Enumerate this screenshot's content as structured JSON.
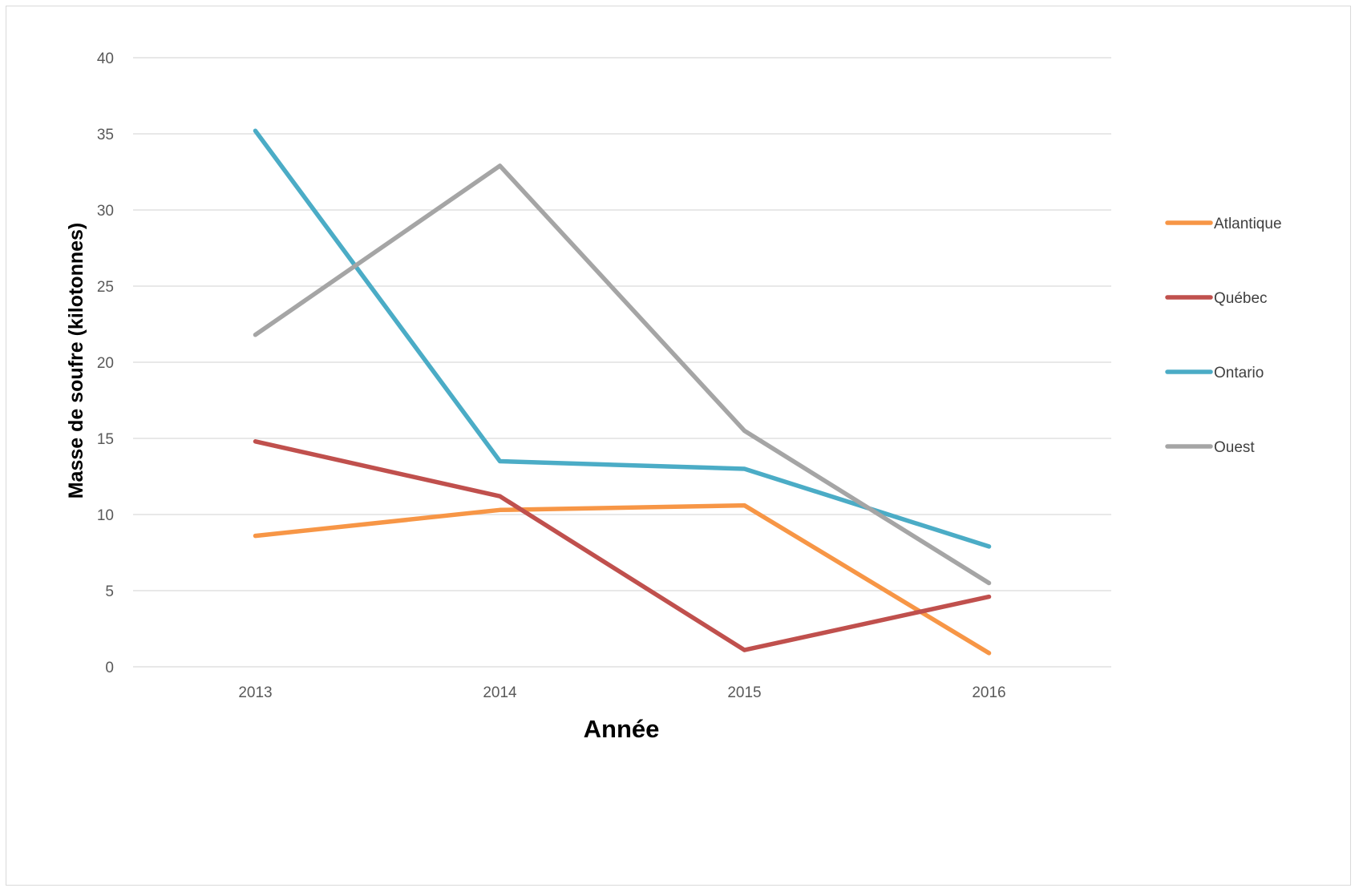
{
  "chart_data": {
    "type": "line",
    "title": "",
    "xlabel": "Année",
    "ylabel": "Masse de soufre (kilotonnes)",
    "categories": [
      "2013",
      "2014",
      "2015",
      "2016"
    ],
    "ylim": [
      0,
      40
    ],
    "yticks": [
      0,
      5,
      10,
      15,
      20,
      25,
      30,
      35,
      40
    ],
    "grid": true,
    "legend_position": "right",
    "series": [
      {
        "name": "Atlantique",
        "color": "#F79646",
        "values": [
          8.6,
          10.3,
          10.6,
          0.9
        ]
      },
      {
        "name": "Québec",
        "color": "#C0504D",
        "values": [
          14.8,
          11.2,
          1.1,
          4.6
        ]
      },
      {
        "name": "Ontario",
        "color": "#4BACC6",
        "values": [
          35.2,
          13.5,
          13.0,
          7.9
        ]
      },
      {
        "name": "Ouest",
        "color": "#A5A5A5",
        "values": [
          21.8,
          32.9,
          15.5,
          5.5
        ]
      }
    ]
  }
}
